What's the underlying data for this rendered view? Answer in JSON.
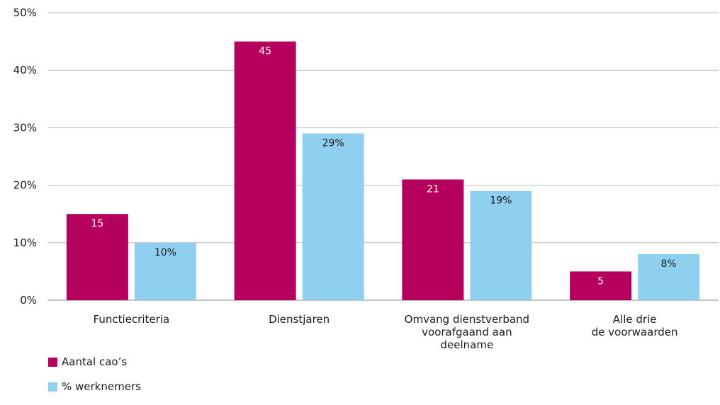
{
  "chart_data": {
    "type": "bar",
    "categories": [
      [
        "Functiecriteria"
      ],
      [
        "Dienstjaren"
      ],
      [
        "Omvang dienstverband",
        "voorafgaand aan",
        "deelname"
      ],
      [
        "Alle drie",
        "de voorwaarden"
      ]
    ],
    "series": [
      {
        "name": "Aantal cao’s",
        "color": "#b5005e",
        "values": [
          15,
          45,
          21,
          5
        ],
        "labels": [
          "15",
          "45",
          "21",
          "5"
        ],
        "label_color": "#ffffff"
      },
      {
        "name": "% werknemers",
        "color": "#8fd0f0",
        "values": [
          10,
          29,
          19,
          8
        ],
        "labels": [
          "10%",
          "29%",
          "19%",
          "8%"
        ],
        "label_color": "#1a1a1a"
      }
    ],
    "yticks": [
      {
        "value": 0,
        "label": "0%"
      },
      {
        "value": 10,
        "label": "10%"
      },
      {
        "value": 20,
        "label": "20%"
      },
      {
        "value": 30,
        "label": "30%"
      },
      {
        "value": 40,
        "label": "40%"
      },
      {
        "value": 50,
        "label": "50%"
      }
    ],
    "ylim": [
      0,
      50
    ],
    "grid": true,
    "legend_position": "bottom-left"
  }
}
